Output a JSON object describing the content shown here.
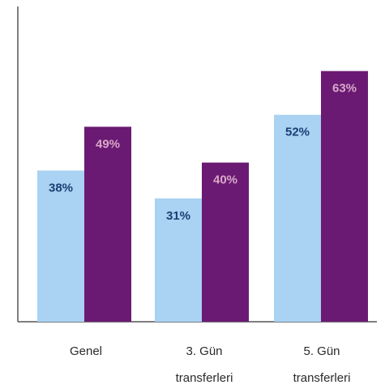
{
  "chart_data": {
    "type": "bar",
    "categories": [
      [
        "Genel"
      ],
      [
        "3. Gün",
        "transferleri"
      ],
      [
        "5. Gün",
        "transferleri"
      ]
    ],
    "series": [
      {
        "values": [
          38,
          31,
          52
        ],
        "labels": [
          "38%",
          "31%",
          "52%"
        ],
        "color": "#a9d2f3",
        "label_color": "#1b3f73"
      },
      {
        "values": [
          49,
          40,
          63
        ],
        "labels": [
          "49%",
          "40%",
          "63%"
        ],
        "color": "#6a1a73",
        "label_color": "#d9a9c9"
      }
    ],
    "ylim": [
      0,
      65
    ],
    "grid": false,
    "legend": "none",
    "title": "",
    "xlabel": "",
    "ylabel": ""
  }
}
